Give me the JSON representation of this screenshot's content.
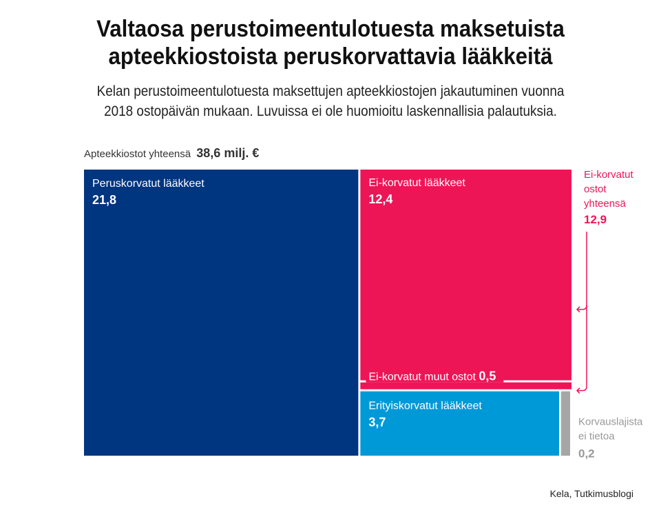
{
  "title_line1": "Valtaosa perustoimeentulotuesta maksetuista",
  "title_line2": "apteekkiostoista peruskorvattavia lääkkeitä",
  "subtitle_line1": "Kelan perustoimeentulotuesta maksettujen apteekkiostojen jakautuminen vuonna",
  "subtitle_line2": "2018 ostopäivän mukaan. Luvuissa ei ole huomioitu laskennallisia palautuksia.",
  "total_label": "Apteekkiostot yhteensä",
  "total_value": "38,6 milj. €",
  "source": "Kela, Tutkimusblogi",
  "colors": {
    "navy": "#003580",
    "magenta": "#ee1557",
    "cyan": "#0099d8",
    "gray": "#a6a6a6"
  },
  "chart_data": {
    "type": "treemap",
    "unit": "milj. €",
    "total": 38.6,
    "segments": [
      {
        "name": "Peruskorvatut lääkkeet",
        "value": 21.8,
        "value_label": "21,8",
        "color": "#003580"
      },
      {
        "name": "Ei-korvatut lääkkeet",
        "value": 12.4,
        "value_label": "12,4",
        "color": "#ee1557"
      },
      {
        "name": "Ei-korvatut muut ostot",
        "value": 0.5,
        "value_label": "0,5",
        "color": "#ee1557"
      },
      {
        "name": "Erityiskorvatut lääkkeet",
        "value": 3.7,
        "value_label": "3,7",
        "color": "#0099d8"
      },
      {
        "name": "Korvauslajista ei tietoa",
        "value": 0.2,
        "value_label": "0,2",
        "color": "#a6a6a6"
      }
    ],
    "group_annotation": {
      "label_lines": [
        "Ei-korvatut",
        "ostot",
        "yhteensä"
      ],
      "value": 12.9,
      "value_label": "12,9"
    }
  }
}
